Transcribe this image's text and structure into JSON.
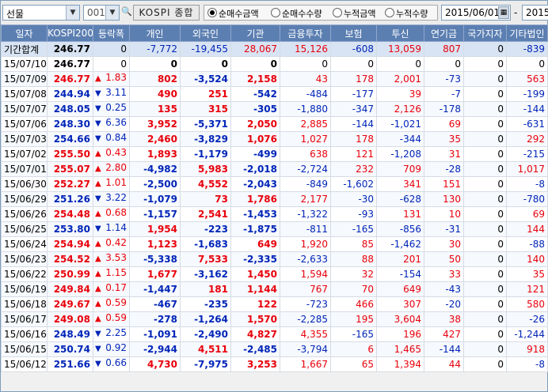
{
  "toolbar": {
    "market_select": "선물",
    "code_value": "001",
    "index_name": "KOSPI 종합",
    "radio_options": [
      "순매수금액",
      "순매수수량",
      "누적금액",
      "누적수량"
    ],
    "radio_selected": 0,
    "date_from": "2015/06/01",
    "date_separator": "-",
    "date_to": "2015/"
  },
  "columns": [
    "일자",
    "KOSPI200",
    "등락폭",
    "개인",
    "외국인",
    "기관",
    "금융투자",
    "보험",
    "투신",
    "연기금",
    "국가지자",
    "기타법인"
  ],
  "total_row": {
    "label": "기간합계",
    "kospi": "246.77",
    "change": "0",
    "individual": "-7,772",
    "foreign": "-19,455",
    "institution": "28,067",
    "fin_invest": "15,126",
    "insurance": "-608",
    "trust": "13,059",
    "pension": "807",
    "state": "0",
    "other_corp": "-839"
  },
  "rows": [
    {
      "date": "15/07/10",
      "kospi": "246.77",
      "dir": "none",
      "change": "0",
      "individual": "0",
      "foreign": "0",
      "institution": "0",
      "fin_invest": "0",
      "insurance": "0",
      "trust": "0",
      "pension": "0",
      "state": "0",
      "other_corp": "0"
    },
    {
      "date": "15/07/09",
      "kospi": "246.77",
      "dir": "up",
      "change": "1.83",
      "individual": "802",
      "foreign": "-3,524",
      "institution": "2,158",
      "fin_invest": "43",
      "insurance": "178",
      "trust": "2,001",
      "pension": "-73",
      "state": "0",
      "other_corp": "563"
    },
    {
      "date": "15/07/08",
      "kospi": "244.94",
      "dir": "down",
      "change": "3.11",
      "individual": "490",
      "foreign": "251",
      "institution": "-542",
      "fin_invest": "-484",
      "insurance": "-177",
      "trust": "39",
      "pension": "-7",
      "state": "0",
      "other_corp": "-199"
    },
    {
      "date": "15/07/07",
      "kospi": "248.05",
      "dir": "down",
      "change": "0.25",
      "individual": "135",
      "foreign": "315",
      "institution": "-305",
      "fin_invest": "-1,880",
      "insurance": "-347",
      "trust": "2,126",
      "pension": "-178",
      "state": "0",
      "other_corp": "-144"
    },
    {
      "date": "15/07/06",
      "kospi": "248.30",
      "dir": "down",
      "change": "6.36",
      "individual": "3,952",
      "foreign": "-5,371",
      "institution": "2,050",
      "fin_invest": "2,885",
      "insurance": "-144",
      "trust": "-1,021",
      "pension": "69",
      "state": "0",
      "other_corp": "-631"
    },
    {
      "date": "15/07/03",
      "kospi": "254.66",
      "dir": "down",
      "change": "0.84",
      "individual": "2,460",
      "foreign": "-3,829",
      "institution": "1,076",
      "fin_invest": "1,027",
      "insurance": "178",
      "trust": "-344",
      "pension": "35",
      "state": "0",
      "other_corp": "292"
    },
    {
      "date": "15/07/02",
      "kospi": "255.50",
      "dir": "up",
      "change": "0.43",
      "individual": "1,893",
      "foreign": "-1,179",
      "institution": "-499",
      "fin_invest": "638",
      "insurance": "121",
      "trust": "-1,208",
      "pension": "31",
      "state": "0",
      "other_corp": "-215"
    },
    {
      "date": "15/07/01",
      "kospi": "255.07",
      "dir": "up",
      "change": "2.80",
      "individual": "-4,982",
      "foreign": "5,983",
      "institution": "-2,018",
      "fin_invest": "-2,724",
      "insurance": "232",
      "trust": "709",
      "pension": "-28",
      "state": "0",
      "other_corp": "1,017"
    },
    {
      "date": "15/06/30",
      "kospi": "252.27",
      "dir": "up",
      "change": "1.01",
      "individual": "-2,500",
      "foreign": "4,552",
      "institution": "-2,043",
      "fin_invest": "-849",
      "insurance": "-1,602",
      "trust": "341",
      "pension": "151",
      "state": "0",
      "other_corp": "-8"
    },
    {
      "date": "15/06/29",
      "kospi": "251.26",
      "dir": "down",
      "change": "3.22",
      "individual": "-1,079",
      "foreign": "73",
      "institution": "1,786",
      "fin_invest": "2,177",
      "insurance": "-30",
      "trust": "-628",
      "pension": "130",
      "state": "0",
      "other_corp": "-780"
    },
    {
      "date": "15/06/26",
      "kospi": "254.48",
      "dir": "up",
      "change": "0.68",
      "individual": "-1,157",
      "foreign": "2,541",
      "institution": "-1,453",
      "fin_invest": "-1,322",
      "insurance": "-93",
      "trust": "131",
      "pension": "10",
      "state": "0",
      "other_corp": "69"
    },
    {
      "date": "15/06/25",
      "kospi": "253.80",
      "dir": "down",
      "change": "1.14",
      "individual": "1,954",
      "foreign": "-223",
      "institution": "-1,875",
      "fin_invest": "-811",
      "insurance": "-165",
      "trust": "-856",
      "pension": "-31",
      "state": "0",
      "other_corp": "144"
    },
    {
      "date": "15/06/24",
      "kospi": "254.94",
      "dir": "up",
      "change": "0.42",
      "individual": "1,123",
      "foreign": "-1,683",
      "institution": "649",
      "fin_invest": "1,920",
      "insurance": "85",
      "trust": "-1,462",
      "pension": "30",
      "state": "0",
      "other_corp": "-88"
    },
    {
      "date": "15/06/23",
      "kospi": "254.52",
      "dir": "up",
      "change": "3.53",
      "individual": "-5,338",
      "foreign": "7,533",
      "institution": "-2,335",
      "fin_invest": "-2,633",
      "insurance": "88",
      "trust": "201",
      "pension": "50",
      "state": "0",
      "other_corp": "140"
    },
    {
      "date": "15/06/22",
      "kospi": "250.99",
      "dir": "up",
      "change": "1.15",
      "individual": "1,677",
      "foreign": "-3,162",
      "institution": "1,450",
      "fin_invest": "1,594",
      "insurance": "32",
      "trust": "-154",
      "pension": "33",
      "state": "0",
      "other_corp": "35"
    },
    {
      "date": "15/06/19",
      "kospi": "249.84",
      "dir": "up",
      "change": "0.17",
      "individual": "-1,447",
      "foreign": "181",
      "institution": "1,144",
      "fin_invest": "767",
      "insurance": "70",
      "trust": "649",
      "pension": "-43",
      "state": "0",
      "other_corp": "121"
    },
    {
      "date": "15/06/18",
      "kospi": "249.67",
      "dir": "up",
      "change": "0.59",
      "individual": "-467",
      "foreign": "-235",
      "institution": "122",
      "fin_invest": "-723",
      "insurance": "466",
      "trust": "307",
      "pension": "-20",
      "state": "0",
      "other_corp": "580"
    },
    {
      "date": "15/06/17",
      "kospi": "249.08",
      "dir": "up",
      "change": "0.59",
      "individual": "-278",
      "foreign": "-1,264",
      "institution": "1,570",
      "fin_invest": "-2,285",
      "insurance": "195",
      "trust": "3,604",
      "pension": "38",
      "state": "0",
      "other_corp": "-26"
    },
    {
      "date": "15/06/16",
      "kospi": "248.49",
      "dir": "down",
      "change": "2.25",
      "individual": "-1,091",
      "foreign": "-2,490",
      "institution": "4,827",
      "fin_invest": "4,355",
      "insurance": "-165",
      "trust": "196",
      "pension": "427",
      "state": "0",
      "other_corp": "-1,244"
    },
    {
      "date": "15/06/15",
      "kospi": "250.74",
      "dir": "down",
      "change": "0.92",
      "individual": "-2,944",
      "foreign": "4,511",
      "institution": "-2,485",
      "fin_invest": "-3,794",
      "insurance": "6",
      "trust": "1,465",
      "pension": "-144",
      "state": "0",
      "other_corp": "918"
    },
    {
      "date": "15/06/12",
      "kospi": "251.66",
      "dir": "down",
      "change": "0.66",
      "individual": "4,730",
      "foreign": "-7,975",
      "institution": "3,253",
      "fin_invest": "1,667",
      "insurance": "65",
      "trust": "1,394",
      "pension": "44",
      "state": "0",
      "other_corp": "-8"
    }
  ],
  "colors": {
    "positive": "#e8000b",
    "negative": "#0025b8",
    "header_bg": "#5c7fb2"
  }
}
